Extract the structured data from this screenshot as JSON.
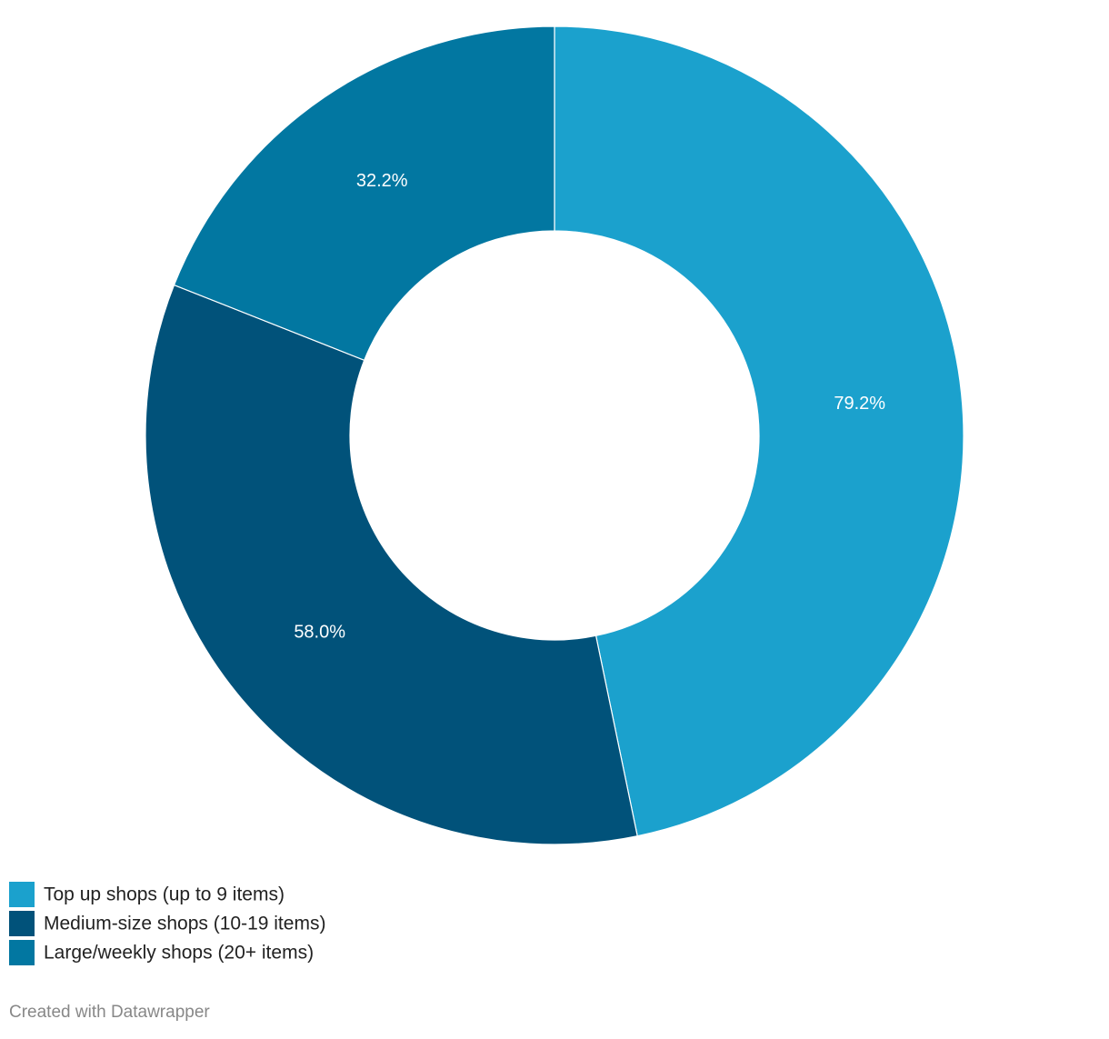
{
  "chart_data": {
    "type": "donut",
    "categories": [
      "Top up shops (up to 9 items)",
      "Medium-size shops (10-19 items)",
      "Large/weekly shops (20+ items)"
    ],
    "values": [
      79.2,
      58.0,
      32.2
    ],
    "value_labels": [
      "79.2%",
      "58.0%",
      "32.2%"
    ],
    "colors": [
      "#1ba1cd",
      "#01527a",
      "#0277a1"
    ],
    "footer": "Created with Datawrapper"
  }
}
